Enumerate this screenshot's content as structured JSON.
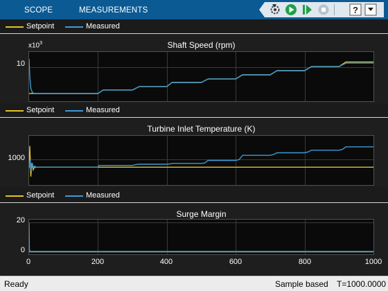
{
  "toolstrip": {
    "tabs": [
      "SCOPE",
      "MEASUREMENTS"
    ],
    "buttons": [
      "step-back-icon",
      "run-icon",
      "step-forward-icon",
      "stop-icon",
      "help-icon",
      "minimize-icon"
    ]
  },
  "colors": {
    "setpoint": "#e6c229",
    "measured": "#3d9ad9",
    "background": "#0a0a0a",
    "toolstrip": "#0b5a93"
  },
  "legend": {
    "setpoint": "Setpoint",
    "measured": "Measured"
  },
  "plots": [
    {
      "title": "Shaft Speed (rpm)",
      "exponent_base": "x10",
      "exponent_power": "3",
      "yticks": [
        "10"
      ]
    },
    {
      "title": "Turbine Inlet Temperature (K)",
      "yticks": [
        "1000"
      ]
    },
    {
      "title": "Surge Margin",
      "yticks": [
        "20",
        "0"
      ]
    }
  ],
  "xticks": [
    "0",
    "200",
    "400",
    "600",
    "800",
    "1000"
  ],
  "status": {
    "ready": "Ready",
    "mode": "Sample based",
    "time": "T=1000.0000"
  },
  "chart_data": [
    {
      "type": "line",
      "title": "Shaft Speed (rpm)",
      "ylabel": "x10^3",
      "xlim": [
        0,
        1000
      ],
      "ylim": [
        7.1,
        11.3
      ],
      "series": [
        {
          "name": "Setpoint",
          "x": [
            0,
            20,
            200,
            215,
            300,
            320,
            400,
            415,
            500,
            520,
            600,
            620,
            700,
            720,
            800,
            820,
            900,
            920,
            1000
          ],
          "y": [
            7.75,
            7.75,
            7.75,
            8.05,
            8.05,
            8.35,
            8.35,
            8.7,
            8.7,
            9.0,
            9.0,
            9.35,
            9.35,
            9.7,
            9.7,
            10.05,
            10.05,
            10.45,
            10.45
          ]
        },
        {
          "name": "Measured",
          "x": [
            0,
            2,
            5,
            10,
            20,
            200,
            215,
            300,
            320,
            400,
            415,
            500,
            520,
            600,
            620,
            700,
            720,
            800,
            820,
            900,
            920,
            1000
          ],
          "y": [
            10.7,
            9.2,
            8.2,
            7.8,
            7.75,
            7.75,
            8.05,
            8.05,
            8.35,
            8.35,
            8.7,
            8.7,
            9.0,
            9.0,
            9.35,
            9.35,
            9.7,
            9.7,
            10.05,
            10.05,
            10.35,
            10.35
          ]
        }
      ]
    },
    {
      "type": "line",
      "title": "Turbine Inlet Temperature (K)",
      "xlim": [
        0,
        1000
      ],
      "ylim": [
        700,
        1280
      ],
      "series": [
        {
          "name": "Setpoint",
          "x": [
            0,
            2,
            5,
            8,
            12,
            16,
            20,
            1000
          ],
          "y": [
            900,
            1160,
            800,
            960,
            880,
            920,
            910,
            910
          ]
        },
        {
          "name": "Measured",
          "x": [
            0,
            3,
            6,
            9,
            12,
            15,
            18,
            20,
            200,
            203,
            215,
            300,
            310,
            320,
            400,
            410,
            415,
            500,
            510,
            520,
            600,
            610,
            620,
            700,
            710,
            720,
            800,
            810,
            820,
            900,
            910,
            920,
            1000
          ],
          "y": [
            900,
            1000,
            860,
            960,
            900,
            920,
            905,
            910,
            910,
            930,
            930,
            930,
            940,
            945,
            945,
            950,
            955,
            955,
            960,
            990,
            990,
            1000,
            1050,
            1050,
            1060,
            1080,
            1080,
            1090,
            1110,
            1110,
            1120,
            1150,
            1150
          ]
        }
      ]
    },
    {
      "type": "line",
      "title": "Surge Margin",
      "xlim": [
        0,
        1000
      ],
      "ylim": [
        -1.5,
        22
      ],
      "series": [
        {
          "name": "Setpoint",
          "x": [
            0,
            1000
          ],
          "y": [
            0.4,
            0.4
          ]
        },
        {
          "name": "Measured",
          "x": [
            0,
            1,
            3,
            1000
          ],
          "y": [
            20,
            1.5,
            0.4,
            0.4
          ]
        }
      ]
    }
  ]
}
